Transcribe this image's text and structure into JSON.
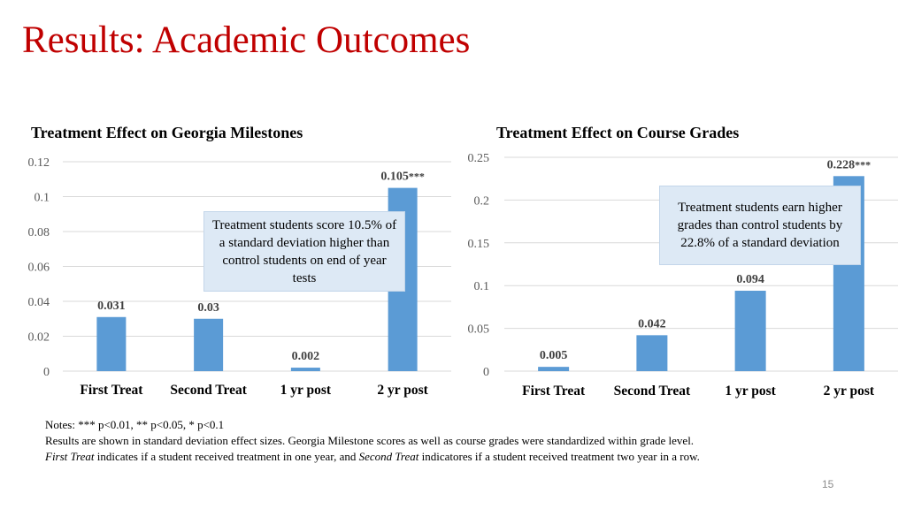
{
  "slide": {
    "title": "Results: Academic Outcomes",
    "page_number": "15"
  },
  "colors": {
    "bar": "#5b9bd5",
    "title": "#c00000",
    "grid": "#d9d9d9",
    "callout_bg": "#dde9f5"
  },
  "chart_data": [
    {
      "type": "bar",
      "title": "Treatment Effect on Georgia Milestones",
      "categories": [
        "First Treat",
        "Second Treat",
        "1 yr post",
        "2 yr post"
      ],
      "values": [
        0.031,
        0.03,
        0.002,
        0.105
      ],
      "data_labels": [
        "0.031",
        "0.03",
        "0.002",
        "0.105"
      ],
      "significance": [
        "",
        "",
        "",
        "***"
      ],
      "ylim": [
        0,
        0.12
      ],
      "yticks": [
        0,
        0.02,
        0.04,
        0.06,
        0.08,
        0.1,
        0.12
      ],
      "ytick_labels": [
        "0",
        "0.02",
        "0.04",
        "0.06",
        "0.08",
        "0.1",
        "0.12"
      ],
      "grid": true,
      "xlabel": "",
      "ylabel": "",
      "annotation": "Treatment students score 10.5% of a standard deviation higher than control students on end of year tests"
    },
    {
      "type": "bar",
      "title": "Treatment Effect on Course Grades",
      "categories": [
        "First Treat",
        "Second Treat",
        "1 yr post",
        "2 yr post"
      ],
      "values": [
        0.005,
        0.042,
        0.094,
        0.228
      ],
      "data_labels": [
        "0.005",
        "0.042",
        "0.094",
        "0.228"
      ],
      "significance": [
        "",
        "",
        "",
        "***"
      ],
      "ylim": [
        0,
        0.25
      ],
      "yticks": [
        0,
        0.05,
        0.1,
        0.15,
        0.2,
        0.25
      ],
      "ytick_labels": [
        "0",
        "0.05",
        "0.1",
        "0.15",
        "0.2",
        "0.25"
      ],
      "grid": true,
      "xlabel": "",
      "ylabel": "",
      "annotation": "Treatment students earn higher grades than control students by  22.8% of a standard deviation"
    }
  ],
  "notes": {
    "line1": "Notes: *** p<0.01, ** p<0.05, * p<0.1",
    "line2": "Results are shown in standard deviation effect sizes. Georgia Milestone scores as well as course grades were standardized within grade level.",
    "line3_part1": "First Treat",
    "line3_part2": " indicates if a student received treatment in one year, and ",
    "line3_part3": "Second Treat",
    "line3_part4": " indicatores if a student received treatment two year in a row."
  }
}
